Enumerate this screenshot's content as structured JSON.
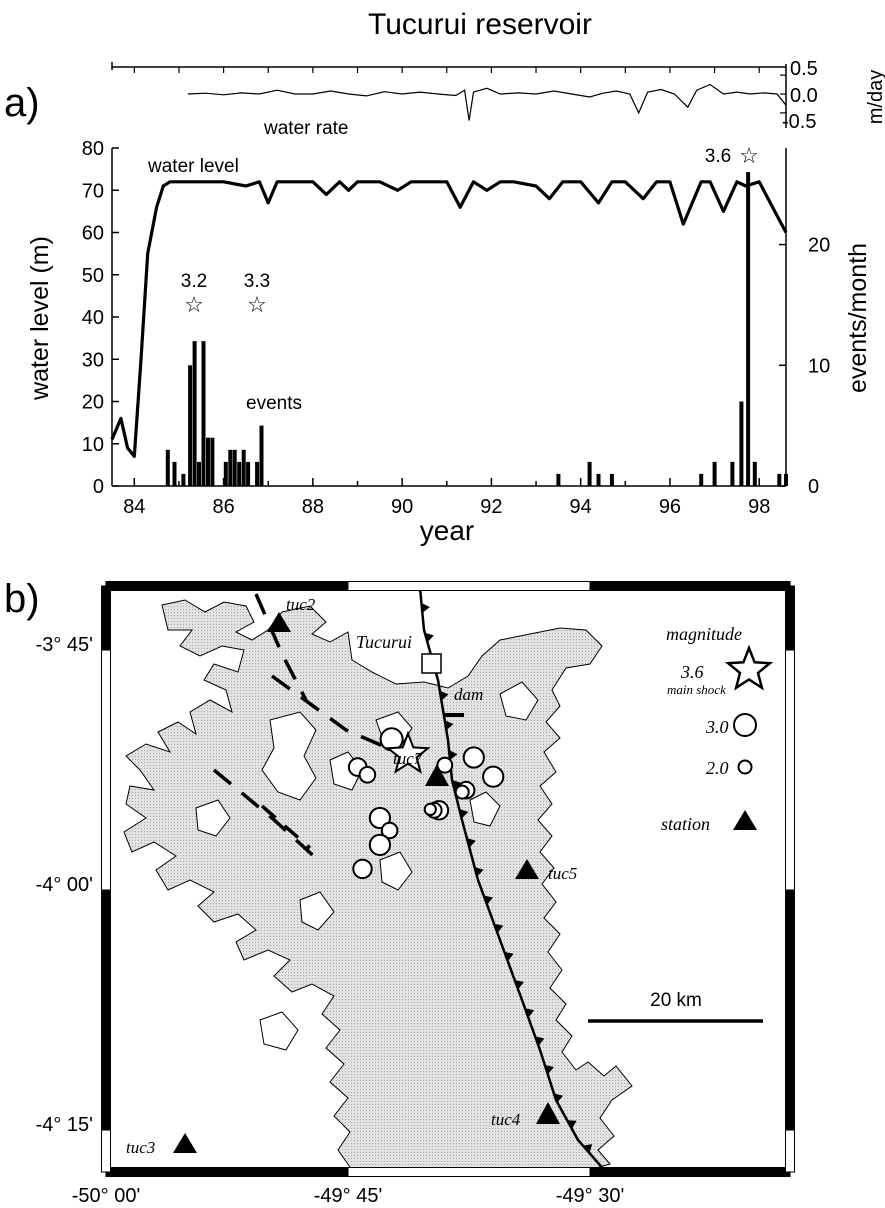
{
  "figure": {
    "title": "Tucurui reservoir",
    "panel_a_label": "a)",
    "panel_b_label": "b)"
  },
  "chart_data": [
    {
      "type": "line",
      "panel": "a-top",
      "series": [
        {
          "name": "water rate",
          "values_note": "daily rate of water level change"
        }
      ],
      "ylabel": "m/day",
      "yticks": [
        "0.5",
        "0.0",
        "-0.5"
      ],
      "ylim": [
        -0.7,
        0.7
      ],
      "xlim": [
        83.5,
        98.6
      ],
      "rate_points": [
        [
          85.2,
          0.0
        ],
        [
          85.6,
          0.02
        ],
        [
          86.0,
          -0.02
        ],
        [
          86.4,
          0.03
        ],
        [
          86.8,
          0.0
        ],
        [
          87.2,
          0.1
        ],
        [
          87.6,
          0.0
        ],
        [
          88.0,
          0.0
        ],
        [
          88.4,
          0.08
        ],
        [
          88.8,
          0.0
        ],
        [
          89.2,
          -0.05
        ],
        [
          89.6,
          0.06
        ],
        [
          90.0,
          0.0
        ],
        [
          90.4,
          0.05
        ],
        [
          90.8,
          0.0
        ],
        [
          91.2,
          -0.04
        ],
        [
          91.4,
          0.1
        ],
        [
          91.5,
          -0.7
        ],
        [
          91.6,
          0.05
        ],
        [
          91.9,
          0.15
        ],
        [
          92.2,
          0.0
        ],
        [
          92.6,
          0.03
        ],
        [
          93.0,
          0.0
        ],
        [
          93.4,
          0.08
        ],
        [
          93.8,
          0.0
        ],
        [
          94.2,
          -0.08
        ],
        [
          94.5,
          0.02
        ],
        [
          94.8,
          0.08
        ],
        [
          95.1,
          0.0
        ],
        [
          95.3,
          -0.5
        ],
        [
          95.5,
          0.05
        ],
        [
          95.8,
          0.12
        ],
        [
          96.1,
          0.0
        ],
        [
          96.4,
          -0.35
        ],
        [
          96.6,
          0.1
        ],
        [
          96.9,
          0.25
        ],
        [
          97.2,
          0.0
        ],
        [
          97.5,
          0.05
        ],
        [
          97.8,
          0.0
        ],
        [
          98.1,
          0.03
        ],
        [
          98.4,
          0.0
        ],
        [
          98.6,
          -0.3
        ]
      ]
    },
    {
      "type": "line",
      "panel": "a-main",
      "title": "",
      "xlabel": "year",
      "ylabel": "water level (m)",
      "ylabel_right": "events/month",
      "xticks": [
        "84",
        "86",
        "88",
        "90",
        "92",
        "94",
        "96",
        "98"
      ],
      "yticks_left": [
        "0",
        "10",
        "20",
        "30",
        "40",
        "50",
        "60",
        "70",
        "80"
      ],
      "yticks_right": [
        "0",
        "10",
        "20"
      ],
      "xlim": [
        83.5,
        98.6
      ],
      "ylim": [
        0,
        80
      ],
      "ylim_right": [
        0,
        28
      ],
      "series": [
        {
          "name": "water level",
          "x": [
            83.5,
            83.7,
            83.85,
            84.0,
            84.15,
            84.3,
            84.5,
            84.65,
            84.8,
            85.0,
            85.5,
            86.0,
            86.5,
            86.8,
            87.0,
            87.2,
            87.5,
            88.0,
            88.3,
            88.6,
            88.8,
            89.0,
            89.5,
            89.9,
            90.2,
            90.5,
            91.0,
            91.3,
            91.6,
            91.9,
            92.2,
            92.5,
            93.0,
            93.3,
            93.6,
            94.0,
            94.4,
            94.7,
            95.0,
            95.4,
            95.7,
            96.0,
            96.3,
            96.7,
            96.9,
            97.2,
            97.5,
            97.7,
            98.0,
            98.3,
            98.6
          ],
          "y": [
            11,
            16,
            9,
            7,
            30,
            55,
            66,
            71,
            72,
            72,
            72,
            72,
            71,
            72,
            67,
            72,
            72,
            72,
            69,
            72,
            70,
            72,
            72,
            70,
            72,
            72,
            72,
            66,
            72,
            70,
            72,
            72,
            71,
            68,
            72,
            72,
            67,
            72,
            72,
            68,
            72,
            72,
            62,
            72,
            72,
            65,
            72,
            71,
            72,
            66,
            60
          ]
        },
        {
          "name": "events",
          "bars": [
            [
              84.75,
              3
            ],
            [
              84.9,
              2
            ],
            [
              85.1,
              1
            ],
            [
              85.25,
              10
            ],
            [
              85.35,
              12
            ],
            [
              85.45,
              2
            ],
            [
              85.55,
              12
            ],
            [
              85.65,
              4
            ],
            [
              85.75,
              4
            ],
            [
              86.05,
              2
            ],
            [
              86.15,
              3
            ],
            [
              86.25,
              3
            ],
            [
              86.35,
              2
            ],
            [
              86.45,
              3
            ],
            [
              86.55,
              2
            ],
            [
              86.75,
              2
            ],
            [
              86.85,
              5
            ],
            [
              93.5,
              1
            ],
            [
              94.2,
              2
            ],
            [
              94.4,
              1
            ],
            [
              94.7,
              1
            ],
            [
              96.7,
              1
            ],
            [
              97.0,
              2
            ],
            [
              97.4,
              2
            ],
            [
              97.6,
              7
            ],
            [
              97.75,
              26
            ],
            [
              97.9,
              2
            ],
            [
              98.45,
              1
            ],
            [
              98.6,
              1
            ]
          ]
        }
      ],
      "annotations": [
        {
          "text": "3.2",
          "x": 85.5,
          "label": "3.2"
        },
        {
          "text": "3.3",
          "x": 86.8,
          "label": "3.3"
        },
        {
          "text": "3.6",
          "x": 97.75,
          "label": "3.6"
        }
      ],
      "series_labels": {
        "water_level": "water level",
        "events": "events",
        "water_rate": "water rate"
      }
    }
  ],
  "map": {
    "lat_labels": [
      "-3° 45'",
      "-4° 00'",
      "-4° 15'"
    ],
    "lon_labels": [
      "-50° 00'",
      "-49° 45'",
      "-49° 30'"
    ],
    "town": "Tucurui",
    "dam": "dam",
    "stations": [
      "tuc2",
      "tuc7",
      "tuc5",
      "tuc4",
      "tuc3"
    ],
    "legend": {
      "title": "magnitude",
      "main_mag": "3.6",
      "main_label": "main shock",
      "mag_30": "3.0",
      "mag_20": "2.0",
      "station": "station"
    },
    "scale": "20 km",
    "events_deg": [
      [
        -49.705,
        -3.843,
        3.0
      ],
      [
        -49.74,
        -3.872,
        2.5
      ],
      [
        -49.73,
        -3.88,
        2.3
      ],
      [
        -49.62,
        -3.862,
        2.8
      ],
      [
        -49.6,
        -3.882,
        2.8
      ],
      [
        -49.65,
        -3.87,
        2.2
      ],
      [
        -49.628,
        -3.896,
        2.4
      ],
      [
        -49.632,
        -3.898,
        2.0
      ],
      [
        -49.656,
        -3.917,
        2.6
      ],
      [
        -49.661,
        -3.917,
        2.2
      ],
      [
        -49.665,
        -3.916,
        1.8
      ],
      [
        -49.717,
        -3.925,
        2.8
      ],
      [
        -49.707,
        -3.938,
        2.3
      ],
      [
        -49.717,
        -3.953,
        2.8
      ],
      [
        -49.735,
        -3.978,
        2.6
      ]
    ],
    "main_shock_deg": [
      -49.688,
      -3.859,
      3.6
    ]
  },
  "colors": {
    "water": "#dcdcdc",
    "ink": "#000000"
  }
}
